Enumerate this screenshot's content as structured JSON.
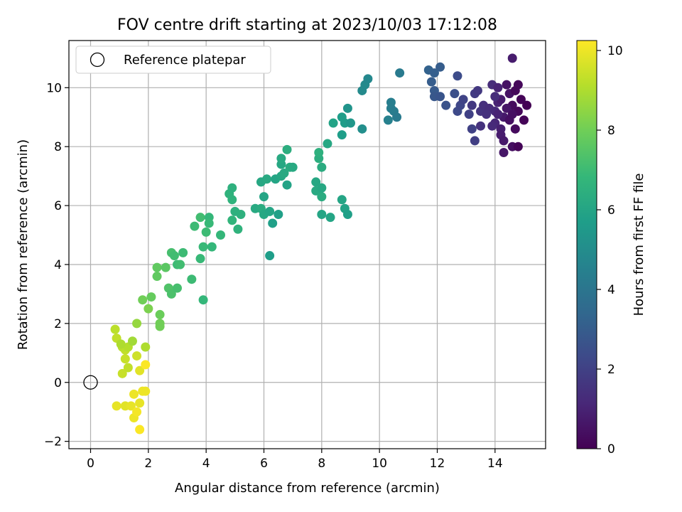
{
  "chart_data": {
    "type": "scatter",
    "title": "FOV centre drift starting at 2023/10/03 17:12:08",
    "xlabel": "Angular distance from reference (arcmin)",
    "ylabel": "Rotation from reference (arcmin)",
    "xlim": [
      -0.75,
      15.75
    ],
    "ylim": [
      -2.25,
      11.6
    ],
    "xticks": [
      0,
      2,
      4,
      6,
      8,
      10,
      12,
      14
    ],
    "yticks": [
      -2,
      0,
      2,
      4,
      6,
      8,
      10
    ],
    "grid": true,
    "colorbar": {
      "label": "Hours from first FF file",
      "min": 0,
      "max": 10.25,
      "ticks": [
        0,
        2,
        4,
        6,
        8,
        10
      ],
      "colormap": "viridis",
      "stops": [
        "#440154",
        "#482878",
        "#3e4989",
        "#31688e",
        "#26828e",
        "#1f9e89",
        "#35b779",
        "#6ece58",
        "#b5de2b",
        "#fde725"
      ]
    },
    "legend": {
      "position": "top-left",
      "entries": [
        "Reference platepar"
      ]
    },
    "reference_point": {
      "x": 0,
      "y": 0,
      "label": "Reference platepar"
    },
    "points": [
      [
        0.9,
        -0.8,
        9.9
      ],
      [
        1.2,
        -0.8,
        9.8
      ],
      [
        1.4,
        -0.8,
        9.9
      ],
      [
        1.5,
        -1.2,
        10.0
      ],
      [
        1.6,
        -1.0,
        10.1
      ],
      [
        1.7,
        -1.6,
        10.2
      ],
      [
        1.5,
        -0.4,
        10.0
      ],
      [
        1.7,
        -0.7,
        9.9
      ],
      [
        1.8,
        -0.3,
        10.0
      ],
      [
        1.9,
        -0.3,
        10.0
      ],
      [
        1.7,
        0.4,
        9.8
      ],
      [
        1.9,
        0.6,
        10.2
      ],
      [
        1.1,
        0.3,
        9.4
      ],
      [
        1.3,
        0.5,
        9.3
      ],
      [
        1.2,
        0.8,
        9.4
      ],
      [
        1.2,
        1.1,
        9.3
      ],
      [
        1.1,
        1.2,
        9.2
      ],
      [
        1.3,
        1.2,
        9.1
      ],
      [
        0.9,
        1.5,
        9.3
      ],
      [
        0.85,
        1.8,
        9.2
      ],
      [
        1.05,
        1.3,
        9.0
      ],
      [
        1.45,
        1.4,
        8.8
      ],
      [
        1.6,
        0.9,
        9.5
      ],
      [
        1.9,
        1.2,
        9.0
      ],
      [
        1.6,
        2.0,
        8.6
      ],
      [
        2.0,
        2.5,
        8.2
      ],
      [
        2.4,
        2.0,
        8.0
      ],
      [
        2.4,
        2.3,
        7.9
      ],
      [
        2.4,
        1.9,
        8.0
      ],
      [
        1.8,
        2.8,
        8.0
      ],
      [
        2.1,
        2.9,
        7.8
      ],
      [
        2.3,
        3.6,
        7.7
      ],
      [
        2.3,
        3.9,
        7.7
      ],
      [
        2.6,
        3.9,
        7.6
      ],
      [
        2.7,
        3.2,
        7.4
      ],
      [
        2.8,
        3.0,
        7.3
      ],
      [
        3.0,
        3.2,
        7.2
      ],
      [
        2.8,
        4.4,
        7.2
      ],
      [
        2.9,
        4.3,
        7.1
      ],
      [
        3.0,
        4.0,
        7.0
      ],
      [
        3.1,
        4.0,
        7.1
      ],
      [
        3.2,
        4.4,
        7.0
      ],
      [
        3.5,
        3.5,
        7.0
      ],
      [
        3.8,
        4.2,
        6.9
      ],
      [
        3.9,
        4.6,
        6.9
      ],
      [
        3.9,
        2.8,
        6.8
      ],
      [
        3.6,
        5.3,
        7.0
      ],
      [
        3.8,
        5.6,
        7.1
      ],
      [
        4.0,
        5.1,
        7.0
      ],
      [
        4.1,
        5.6,
        6.8
      ],
      [
        4.1,
        5.4,
        6.9
      ],
      [
        4.2,
        4.6,
        6.8
      ],
      [
        4.5,
        5.0,
        6.8
      ],
      [
        4.9,
        5.5,
        6.7
      ],
      [
        5.1,
        5.2,
        6.6
      ],
      [
        5.0,
        5.8,
        6.5
      ],
      [
        5.2,
        5.7,
        6.5
      ],
      [
        4.8,
        6.4,
        6.6
      ],
      [
        4.9,
        6.2,
        6.6
      ],
      [
        4.9,
        6.6,
        6.5
      ],
      [
        5.7,
        5.9,
        6.2
      ],
      [
        5.9,
        5.9,
        6.3
      ],
      [
        6.0,
        5.7,
        6.1
      ],
      [
        6.2,
        5.8,
        6.0
      ],
      [
        6.3,
        5.4,
        5.8
      ],
      [
        6.5,
        5.7,
        5.8
      ],
      [
        6.2,
        4.3,
        5.7
      ],
      [
        5.9,
        6.8,
        6.1
      ],
      [
        6.1,
        6.9,
        6.2
      ],
      [
        6.0,
        6.3,
        6.0
      ],
      [
        6.4,
        6.9,
        6.0
      ],
      [
        6.6,
        7.0,
        6.1
      ],
      [
        6.8,
        6.7,
        5.9
      ],
      [
        6.7,
        7.1,
        6.2
      ],
      [
        6.6,
        7.4,
        6.1
      ],
      [
        6.6,
        7.6,
        6.2
      ],
      [
        6.8,
        7.9,
        6.4
      ],
      [
        6.9,
        7.3,
        6.3
      ],
      [
        7.0,
        7.3,
        6.2
      ],
      [
        7.8,
        6.8,
        6.1
      ],
      [
        7.8,
        6.5,
        6.2
      ],
      [
        8.0,
        6.3,
        6.3
      ],
      [
        8.0,
        6.6,
        6.1
      ],
      [
        8.0,
        7.3,
        6.3
      ],
      [
        7.9,
        7.6,
        6.4
      ],
      [
        7.9,
        7.8,
        6.5
      ],
      [
        8.2,
        8.1,
        6.1
      ],
      [
        8.0,
        5.7,
        6.0
      ],
      [
        8.3,
        5.6,
        6.0
      ],
      [
        8.7,
        6.2,
        6.0
      ],
      [
        8.8,
        5.9,
        5.9
      ],
      [
        8.9,
        5.7,
        5.8
      ],
      [
        8.4,
        8.8,
        5.9
      ],
      [
        8.7,
        8.4,
        5.7
      ],
      [
        8.7,
        9.0,
        5.7
      ],
      [
        8.8,
        8.8,
        5.6
      ],
      [
        9.0,
        8.8,
        5.4
      ],
      [
        8.9,
        9.3,
        5.3
      ],
      [
        9.4,
        8.6,
        5.1
      ],
      [
        9.4,
        9.9,
        4.9
      ],
      [
        9.5,
        10.1,
        4.9
      ],
      [
        9.6,
        10.3,
        4.8
      ],
      [
        10.3,
        8.9,
        4.5
      ],
      [
        10.4,
        9.3,
        4.4
      ],
      [
        10.4,
        9.5,
        4.4
      ],
      [
        10.5,
        9.2,
        4.3
      ],
      [
        10.6,
        9.0,
        4.2
      ],
      [
        10.7,
        10.5,
        4.2
      ],
      [
        11.7,
        10.6,
        3.2
      ],
      [
        11.9,
        10.5,
        3.1
      ],
      [
        12.1,
        10.7,
        3.0
      ],
      [
        11.8,
        10.2,
        3.0
      ],
      [
        11.9,
        9.9,
        2.9
      ],
      [
        11.9,
        9.7,
        2.8
      ],
      [
        12.1,
        9.7,
        2.7
      ],
      [
        12.3,
        9.4,
        2.6
      ],
      [
        12.6,
        9.8,
        2.5
      ],
      [
        12.7,
        10.4,
        2.4
      ],
      [
        12.7,
        9.2,
        2.3
      ],
      [
        12.8,
        9.4,
        2.2
      ],
      [
        12.9,
        9.6,
        2.1
      ],
      [
        13.1,
        9.1,
        2.0
      ],
      [
        13.2,
        8.6,
        2.0
      ],
      [
        13.3,
        8.2,
        1.9
      ],
      [
        13.3,
        9.8,
        1.8
      ],
      [
        13.2,
        9.4,
        1.7
      ],
      [
        13.4,
        9.9,
        1.7
      ],
      [
        13.5,
        9.2,
        1.6
      ],
      [
        13.5,
        8.7,
        1.5
      ],
      [
        13.6,
        9.4,
        1.4
      ],
      [
        13.8,
        9.3,
        1.3
      ],
      [
        13.9,
        10.1,
        1.3
      ],
      [
        14.0,
        9.2,
        1.2
      ],
      [
        14.0,
        8.8,
        1.1
      ],
      [
        14.1,
        10.0,
        1.0
      ],
      [
        14.1,
        9.5,
        1.0
      ],
      [
        14.2,
        8.6,
        0.9
      ],
      [
        14.2,
        8.4,
        0.8
      ],
      [
        14.2,
        9.6,
        0.8
      ],
      [
        14.3,
        9.0,
        0.7
      ],
      [
        14.3,
        8.2,
        0.7
      ],
      [
        14.3,
        7.8,
        0.6
      ],
      [
        14.4,
        10.1,
        0.5
      ],
      [
        14.5,
        9.8,
        0.5
      ],
      [
        14.5,
        8.9,
        0.4
      ],
      [
        14.6,
        8.0,
        0.4
      ],
      [
        14.6,
        9.4,
        0.3
      ],
      [
        14.7,
        8.6,
        0.3
      ],
      [
        14.7,
        9.9,
        0.2
      ],
      [
        14.8,
        9.2,
        0.2
      ],
      [
        14.8,
        8.0,
        0.1
      ],
      [
        14.9,
        9.6,
        0.1
      ],
      [
        15.0,
        8.9,
        0.1
      ],
      [
        15.1,
        9.4,
        0.0
      ],
      [
        14.6,
        11.0,
        0.8
      ],
      [
        14.8,
        10.1,
        0.2
      ],
      [
        14.0,
        9.7,
        1.3
      ],
      [
        13.9,
        8.7,
        1.2
      ],
      [
        14.4,
        9.3,
        0.6
      ],
      [
        14.6,
        9.1,
        0.4
      ],
      [
        14.1,
        9.1,
        1.0
      ],
      [
        13.7,
        9.1,
        1.5
      ]
    ]
  }
}
